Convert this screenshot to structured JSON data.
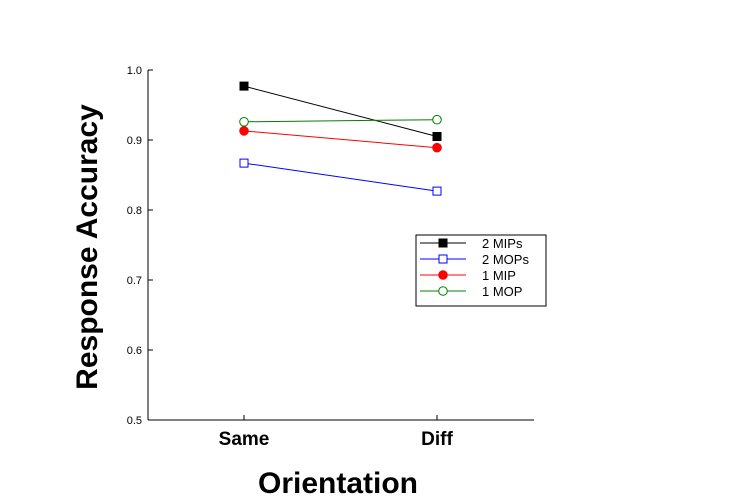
{
  "chart_data": {
    "type": "line",
    "title": "",
    "xlabel": "Orientation",
    "ylabel": "Response Accuracy",
    "categories": [
      "Same",
      "Diff"
    ],
    "ylim": [
      0.5,
      1.0
    ],
    "yticks": [
      "0.5",
      "0.6",
      "0.7",
      "0.8",
      "0.9",
      "1.0"
    ],
    "grid": false,
    "legend_position": "right",
    "series": [
      {
        "name": "2 MIPs",
        "values": [
          0.977,
          0.905
        ],
        "color": "#000000",
        "marker": "square",
        "fill": "filled"
      },
      {
        "name": "2 MOPs",
        "values": [
          0.867,
          0.827
        ],
        "color": "#0000ff",
        "marker": "square",
        "fill": "open"
      },
      {
        "name": "1 MIP",
        "values": [
          0.913,
          0.889
        ],
        "color": "#ff0000",
        "marker": "circle",
        "fill": "filled"
      },
      {
        "name": "1 MOP",
        "values": [
          0.926,
          0.929
        ],
        "color": "#008000",
        "marker": "circle",
        "fill": "open"
      }
    ]
  }
}
